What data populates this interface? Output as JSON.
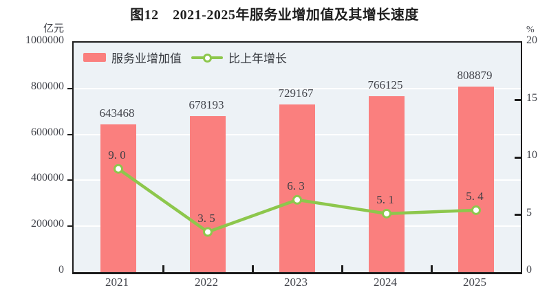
{
  "title": "图12　2021-2025年服务业增加值及其增长速度",
  "left_axis": {
    "unit": "亿元",
    "tick_labels": [
      "1000000",
      "800000",
      "600000",
      "400000",
      "200000",
      "0"
    ],
    "tick_values": [
      1000000,
      800000,
      600000,
      400000,
      200000,
      0
    ],
    "gridline_values": [
      800000,
      600000,
      400000,
      200000
    ]
  },
  "right_axis": {
    "unit": "%",
    "tick_labels": [
      "20",
      "15",
      "10",
      "5",
      "0"
    ],
    "tick_values": [
      20,
      15,
      10,
      5,
      0
    ],
    "inner_tick_values": [
      15,
      10,
      5
    ]
  },
  "colors": {
    "bar": "#fa7f7e",
    "line": "#8dc74c",
    "plot_background": "#edf2f6",
    "gridline": "#ffffff",
    "axis_border": "#1c1c1c",
    "text": "#43454c"
  },
  "chart_data": {
    "type": "bar",
    "subtype": "bar-with-line-overlay",
    "title": "图12 2021-2025年服务业增加值及其增长速度",
    "categories": [
      "2021",
      "2022",
      "2023",
      "2024",
      "2025"
    ],
    "series": [
      {
        "name": "服务业增加值",
        "type": "bar",
        "axis": "left",
        "values": [
          643468,
          678193,
          729167,
          766125,
          808879
        ],
        "value_labels": [
          "643468",
          "678193",
          "729167",
          "766125",
          "808879"
        ],
        "color": "#fa7f7e"
      },
      {
        "name": "比上年增长",
        "type": "line",
        "axis": "right",
        "values": [
          9.0,
          3.5,
          6.3,
          5.1,
          5.4
        ],
        "value_labels": [
          "9. 0",
          "3. 5",
          "6. 3",
          "5. 1",
          "5. 4"
        ],
        "color": "#8dc74c"
      }
    ],
    "left_ylabel": "亿元",
    "right_ylabel": "%",
    "left_ylim": [
      0,
      1000000
    ],
    "right_ylim": [
      0,
      20
    ],
    "grid": true,
    "legend_position": "top-left-inside"
  }
}
